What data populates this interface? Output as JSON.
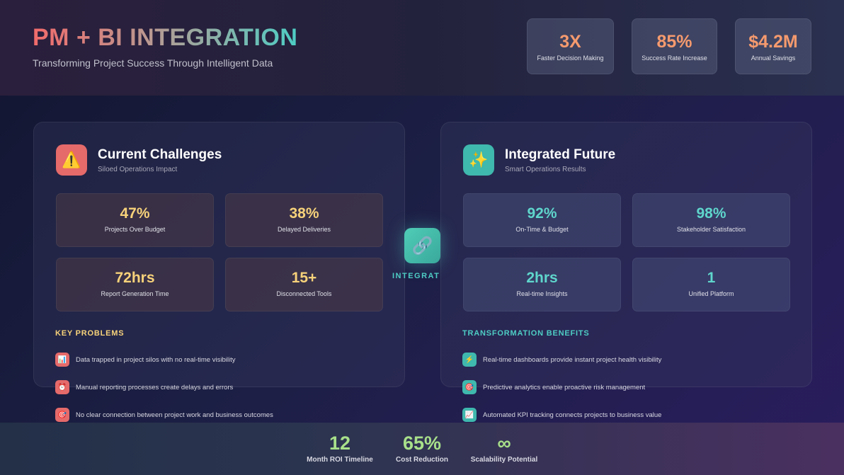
{
  "header": {
    "title": "PM + BI INTEGRATION",
    "subtitle": "Transforming Project Success Through Intelligent Data",
    "stats": [
      {
        "value": "3X",
        "label": "Faster Decision Making"
      },
      {
        "value": "85%",
        "label": "Success Rate Increase"
      },
      {
        "value": "$4.2M",
        "label": "Annual Savings"
      }
    ]
  },
  "left": {
    "icon": "warning-icon",
    "title": "Current Challenges",
    "subtitle": "Siloed Operations Impact",
    "metrics": [
      {
        "value": "47%",
        "label": "Projects Over Budget"
      },
      {
        "value": "38%",
        "label": "Delayed Deliveries"
      },
      {
        "value": "72hrs",
        "label": "Report Generation Time"
      },
      {
        "value": "15+",
        "label": "Disconnected Tools"
      }
    ],
    "section": "KEY PROBLEMS",
    "items": [
      {
        "icon": "bar-chart-icon",
        "text": "Data trapped in project silos with no real-time visibility"
      },
      {
        "icon": "alarm-clock-icon",
        "text": "Manual reporting processes create delays and errors"
      },
      {
        "icon": "target-icon",
        "text": "No clear connection between project work and business outcomes"
      }
    ]
  },
  "hub": {
    "icon": "link-icon",
    "label": "INTEGRATI"
  },
  "right": {
    "icon": "sparkles-icon",
    "title": "Integrated Future",
    "subtitle": "Smart Operations Results",
    "metrics": [
      {
        "value": "92%",
        "label": "On-Time & Budget"
      },
      {
        "value": "98%",
        "label": "Stakeholder Satisfaction"
      },
      {
        "value": "2hrs",
        "label": "Real-time Insights"
      },
      {
        "value": "1",
        "label": "Unified Platform"
      }
    ],
    "section": "TRANSFORMATION BENEFITS",
    "items": [
      {
        "icon": "lightning-icon",
        "text": "Real-time dashboards provide instant project health visibility"
      },
      {
        "icon": "target-icon",
        "text": "Predictive analytics enable proactive risk management"
      },
      {
        "icon": "trend-chart-icon",
        "text": "Automated KPI tracking connects projects to business value"
      }
    ]
  },
  "footer": {
    "stats": [
      {
        "value": "12",
        "label": "Month ROI Timeline"
      },
      {
        "value": "65%",
        "label": "Cost Reduction"
      },
      {
        "value": "∞",
        "label": "Scalability Potential"
      }
    ]
  },
  "colors": {
    "coral": "#f26b6b",
    "teal": "#4ecdc4",
    "yellow": "#f7d27a",
    "green": "#a8e08a"
  }
}
